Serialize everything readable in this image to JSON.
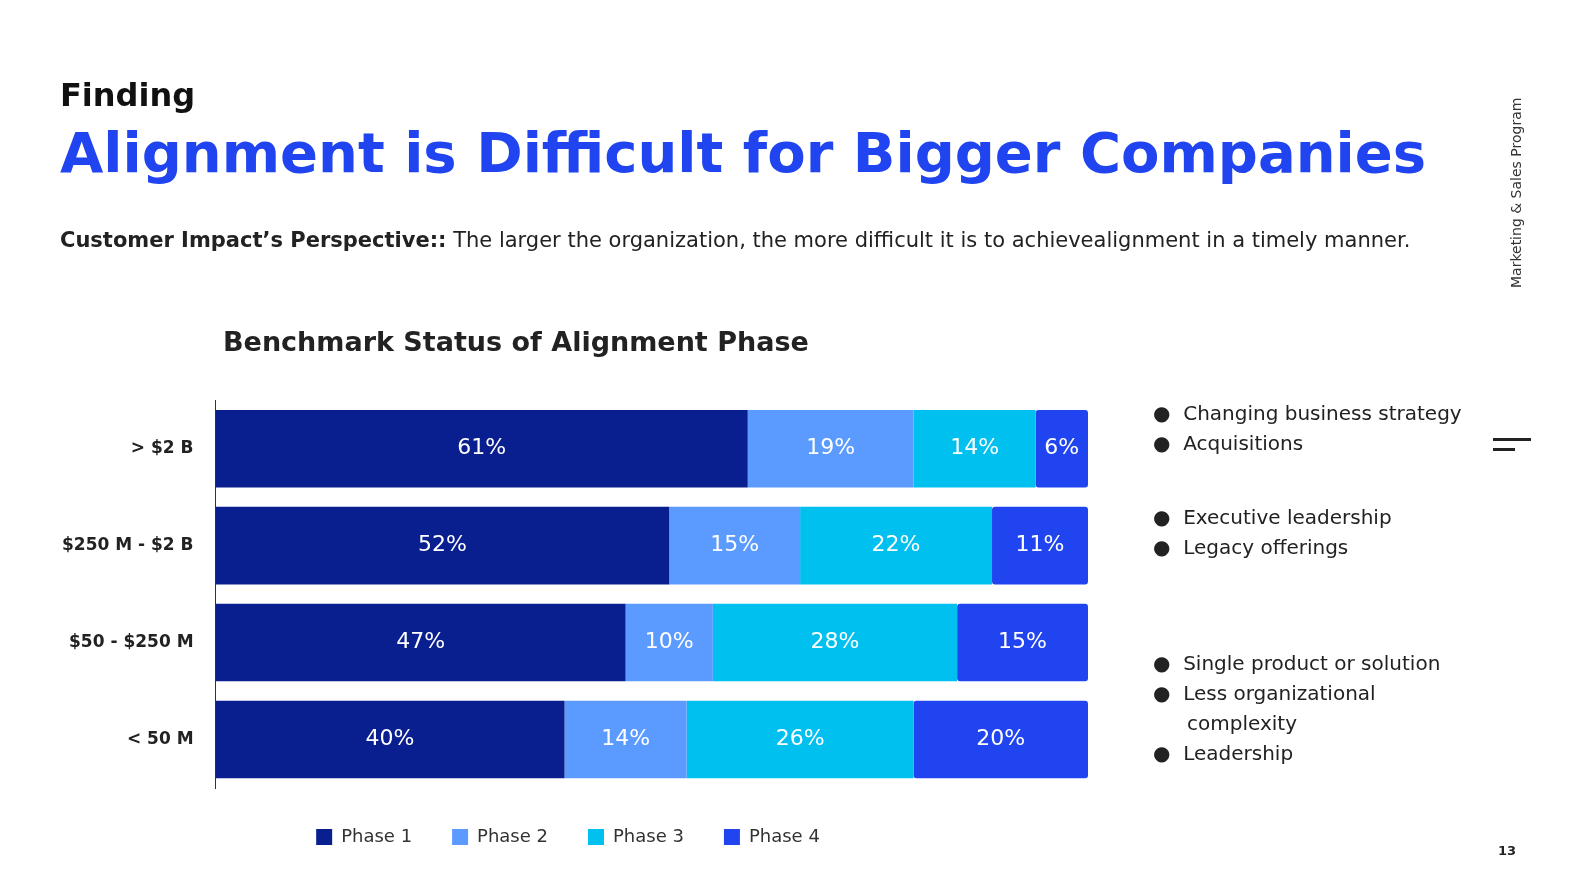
{
  "chart_data": {
    "type": "bar",
    "orientation": "horizontal",
    "stacked": true,
    "legend": "bottom",
    "title": "Alignment is Difficult for Bigger Companies",
    "subtitle": "Customer Impact’s Perspective:: The larger the organization, the more difficult it is to achievealignment in a timely manner.",
    "categories": [
      "> $2 B",
      "$250 M - $2 B",
      "$50 - $250 M",
      "< 50 M"
    ],
    "series": [
      {
        "name": "Phase 1",
        "color": "#0a1f8f",
        "values": [
          61,
          52,
          47,
          40
        ],
        "value_labels": [
          "61%",
          "52%",
          "47%",
          "40%"
        ]
      },
      {
        "name": "Phase 2",
        "color": "#5b9bff",
        "values": [
          19,
          15,
          10,
          14
        ],
        "value_labels": [
          "19%",
          "15%",
          "10%",
          "14%"
        ]
      },
      {
        "name": "Phase 3",
        "color": "#00c0f0",
        "values": [
          14,
          22,
          28,
          26
        ],
        "value_labels": [
          "14%",
          "22%",
          "28%",
          "26%"
        ]
      },
      {
        "name": "Phase 4",
        "color": "#1f44f0",
        "values": [
          6,
          11,
          15,
          20
        ],
        "value_labels": [
          "6%",
          "11%",
          "15%",
          "20%"
        ]
      }
    ],
    "annotations": [
      "Finding",
      "Benchmark Status of Alignment Phase",
      "●  Changing business strategy",
      "●  Acquisitions",
      "●  Executive leadership",
      "●  Legacy offerings",
      "●  Single product or solution",
      "●  Less organizational complexity",
      "●  Leadership",
      "Marketing & Sales Program",
      "13"
    ]
  }
}
